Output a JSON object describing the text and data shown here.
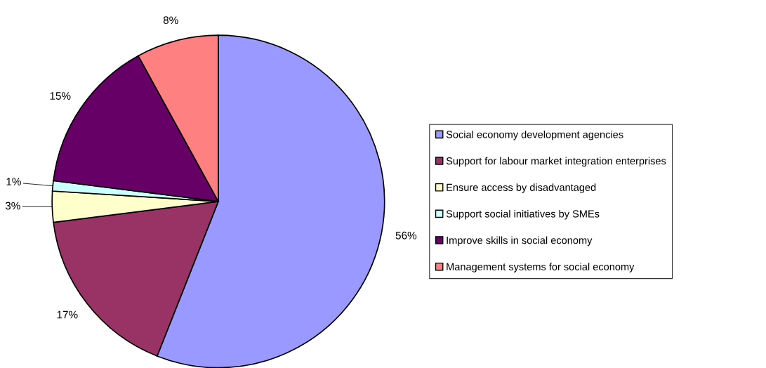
{
  "chart_data": {
    "type": "pie",
    "categories": [
      "Social economy development agencies",
      "Support for labour market integration enterprises",
      "Ensure access by disadvantaged",
      "Support social initiatives by SMEs",
      "Improve skills in social economy",
      "Management systems for social economy"
    ],
    "values": [
      56,
      17,
      3,
      1,
      15,
      8
    ],
    "colors": [
      "#9999ff",
      "#993366",
      "#ffffcc",
      "#ccffff",
      "#660066",
      "#ff8080"
    ],
    "value_labels": [
      "56%",
      "17%",
      "3%",
      "1%",
      "15%",
      "8%"
    ],
    "legend": "right"
  }
}
